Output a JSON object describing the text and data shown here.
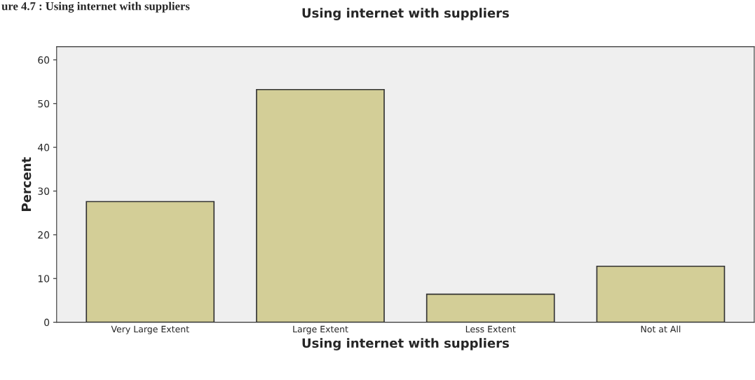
{
  "chart_data": {
    "type": "bar",
    "title": "Using internet with suppliers",
    "xlabel": "Using internet with suppliers",
    "ylabel": "Percent",
    "annotations": [
      "ure 4.7 : Using internet with suppliers"
    ],
    "categories": [
      "Very Large Extent",
      "Large Extent",
      "Less Extent",
      "Not at All"
    ],
    "values": [
      27.6,
      53.2,
      6.4,
      12.8
    ],
    "color": "#d3ce97",
    "ylim": [
      0,
      63
    ],
    "yticks": [
      0,
      10,
      20,
      30,
      40,
      50,
      60
    ],
    "grid": false,
    "legend": false
  }
}
